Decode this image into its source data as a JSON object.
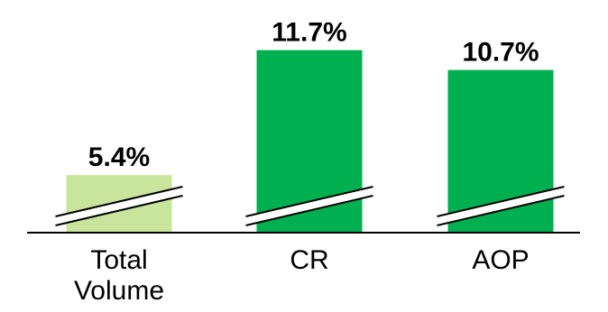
{
  "chart_data": {
    "type": "bar",
    "categories": [
      [
        "Total",
        "Volume"
      ],
      [
        "CR"
      ],
      [
        "AOP"
      ]
    ],
    "values": [
      5.4,
      11.7,
      10.7
    ],
    "value_labels": [
      "5.4%",
      "11.7%",
      "10.7%"
    ],
    "y_unit": "%",
    "axis_break": true,
    "colors": [
      "#c9e59c",
      "#00b050",
      "#00b050"
    ],
    "title": "",
    "xlabel": "",
    "ylabel": "",
    "grid": false
  }
}
